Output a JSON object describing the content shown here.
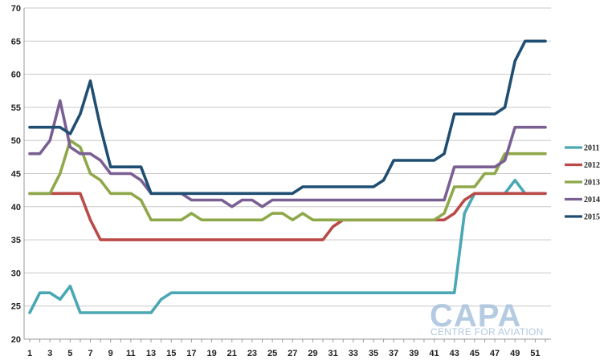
{
  "chart_data": {
    "type": "line",
    "title": "",
    "xlabel": "",
    "ylabel": "",
    "ylim": [
      20,
      70
    ],
    "xlim": [
      1,
      52
    ],
    "y_ticks": [
      20,
      25,
      30,
      35,
      40,
      45,
      50,
      55,
      60,
      65,
      70
    ],
    "x_ticks": [
      1,
      3,
      5,
      7,
      9,
      11,
      13,
      15,
      17,
      19,
      21,
      23,
      25,
      27,
      29,
      31,
      33,
      35,
      37,
      39,
      41,
      43,
      45,
      47,
      49,
      51
    ],
    "grid": "horizontal",
    "legend_position": "right",
    "x": [
      1,
      2,
      3,
      4,
      5,
      6,
      7,
      8,
      9,
      10,
      11,
      12,
      13,
      14,
      15,
      16,
      17,
      18,
      19,
      20,
      21,
      22,
      23,
      24,
      25,
      26,
      27,
      28,
      29,
      30,
      31,
      32,
      33,
      34,
      35,
      36,
      37,
      38,
      39,
      40,
      41,
      42,
      43,
      44,
      45,
      46,
      47,
      48,
      49,
      50,
      51,
      52
    ],
    "series": [
      {
        "name": "2011",
        "color": "#4aa7b4",
        "values": [
          24,
          27,
          27,
          26,
          28,
          24,
          24,
          24,
          24,
          24,
          24,
          24,
          24,
          26,
          27,
          27,
          27,
          27,
          27,
          27,
          27,
          27,
          27,
          27,
          27,
          27,
          27,
          27,
          27,
          27,
          27,
          27,
          27,
          27,
          27,
          27,
          27,
          27,
          27,
          27,
          27,
          27,
          27,
          39,
          42,
          42,
          42,
          42,
          44,
          42,
          42,
          42
        ]
      },
      {
        "name": "2012",
        "color": "#b94a48",
        "values": [
          42,
          42,
          42,
          42,
          42,
          42,
          38,
          35,
          35,
          35,
          35,
          35,
          35,
          35,
          35,
          35,
          35,
          35,
          35,
          35,
          35,
          35,
          35,
          35,
          35,
          35,
          35,
          35,
          35,
          35,
          37,
          38,
          38,
          38,
          38,
          38,
          38,
          38,
          38,
          38,
          38,
          38,
          39,
          41,
          42,
          42,
          42,
          42,
          42,
          42,
          42,
          42
        ]
      },
      {
        "name": "2013",
        "color": "#8ea84a",
        "values": [
          42,
          42,
          42,
          45,
          50,
          49,
          45,
          44,
          42,
          42,
          42,
          41,
          38,
          38,
          38,
          38,
          39,
          38,
          38,
          38,
          38,
          38,
          38,
          38,
          39,
          39,
          38,
          39,
          38,
          38,
          38,
          38,
          38,
          38,
          38,
          38,
          38,
          38,
          38,
          38,
          38,
          39,
          43,
          43,
          43,
          45,
          45,
          48,
          48,
          48,
          48,
          48
        ]
      },
      {
        "name": "2014",
        "color": "#7a5f93",
        "values": [
          48,
          48,
          50,
          56,
          49,
          48,
          48,
          47,
          45,
          45,
          45,
          44,
          42,
          42,
          42,
          42,
          41,
          41,
          41,
          41,
          40,
          41,
          41,
          40,
          41,
          41,
          41,
          41,
          41,
          41,
          41,
          41,
          41,
          41,
          41,
          41,
          41,
          41,
          41,
          41,
          41,
          41,
          46,
          46,
          46,
          46,
          46,
          47,
          52,
          52,
          52,
          52
        ]
      },
      {
        "name": "2015",
        "color": "#1f4e72",
        "values": [
          52,
          52,
          52,
          52,
          51,
          54,
          59,
          52,
          46,
          46,
          46,
          46,
          42,
          42,
          42,
          42,
          42,
          42,
          42,
          42,
          42,
          42,
          42,
          42,
          42,
          42,
          42,
          43,
          43,
          43,
          43,
          43,
          43,
          43,
          43,
          44,
          47,
          47,
          47,
          47,
          47,
          48,
          54,
          54,
          54,
          54,
          54,
          55,
          62,
          65,
          65,
          65
        ]
      }
    ]
  },
  "watermark": {
    "brand": "CAPA",
    "tagline": "CENTRE FOR AVIATION"
  }
}
